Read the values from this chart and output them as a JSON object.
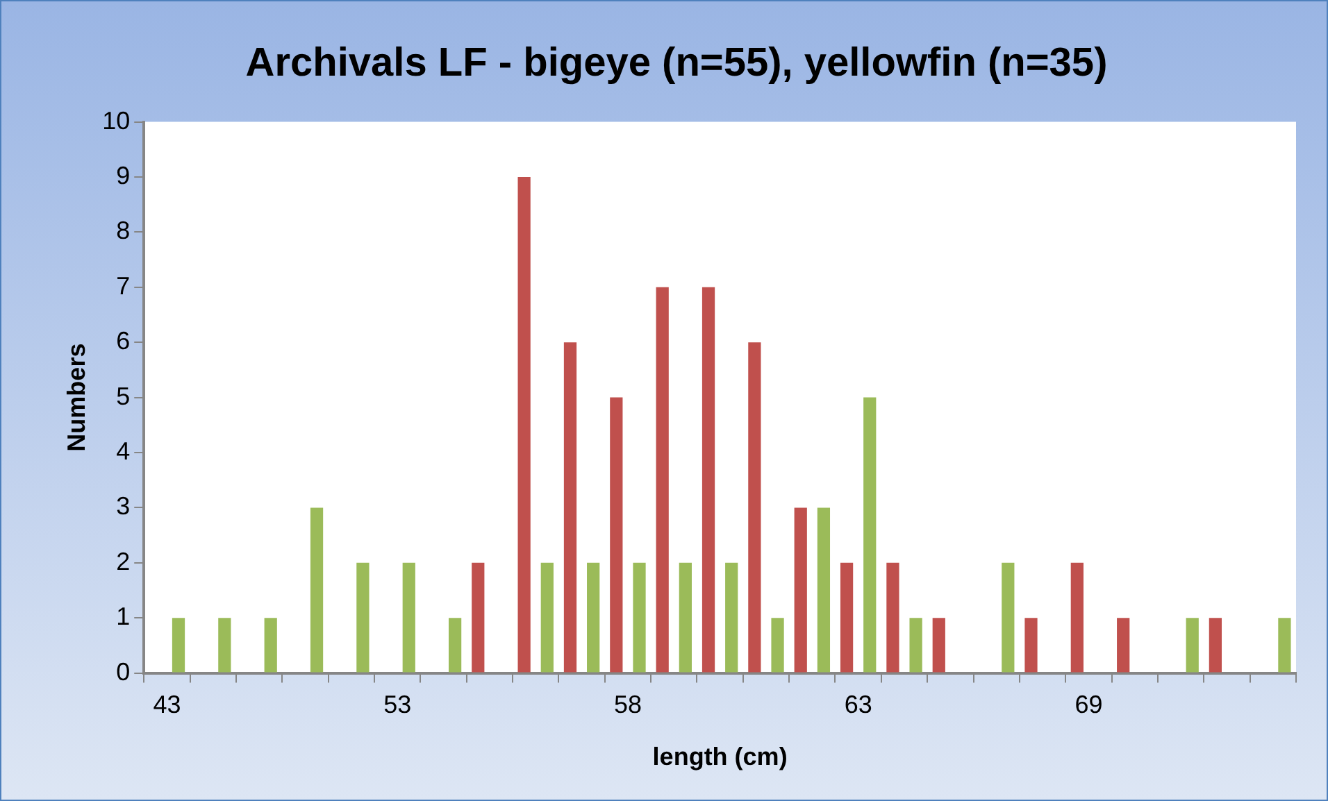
{
  "chart_data": {
    "type": "bar",
    "title": "Archivals LF - bigeye (n=55), yellowfin (n=35)",
    "xlabel": "length (cm)",
    "ylabel": "Numbers",
    "categories": [
      "43",
      null,
      null,
      null,
      null,
      "53",
      null,
      null,
      null,
      null,
      "58",
      null,
      null,
      null,
      null,
      "63",
      null,
      null,
      null,
      null,
      "69",
      null,
      null,
      null,
      null
    ],
    "series": [
      {
        "color": "#c0504d",
        "values": [
          0,
          0,
          0,
          0,
          0,
          0,
          0,
          2,
          9,
          6,
          5,
          7,
          7,
          6,
          3,
          2,
          2,
          1,
          0,
          1,
          2,
          1,
          0,
          1,
          0
        ]
      },
      {
        "color": "#9bbb59",
        "values": [
          1,
          1,
          1,
          3,
          2,
          2,
          1,
          0,
          2,
          2,
          2,
          2,
          2,
          1,
          3,
          5,
          1,
          0,
          2,
          0,
          0,
          0,
          1,
          0,
          1
        ]
      }
    ],
    "ylim": [
      0,
      10
    ],
    "yticks": [
      0,
      1,
      2,
      3,
      4,
      5,
      6,
      7,
      8,
      9,
      10
    ],
    "grid": false,
    "legend": false
  }
}
